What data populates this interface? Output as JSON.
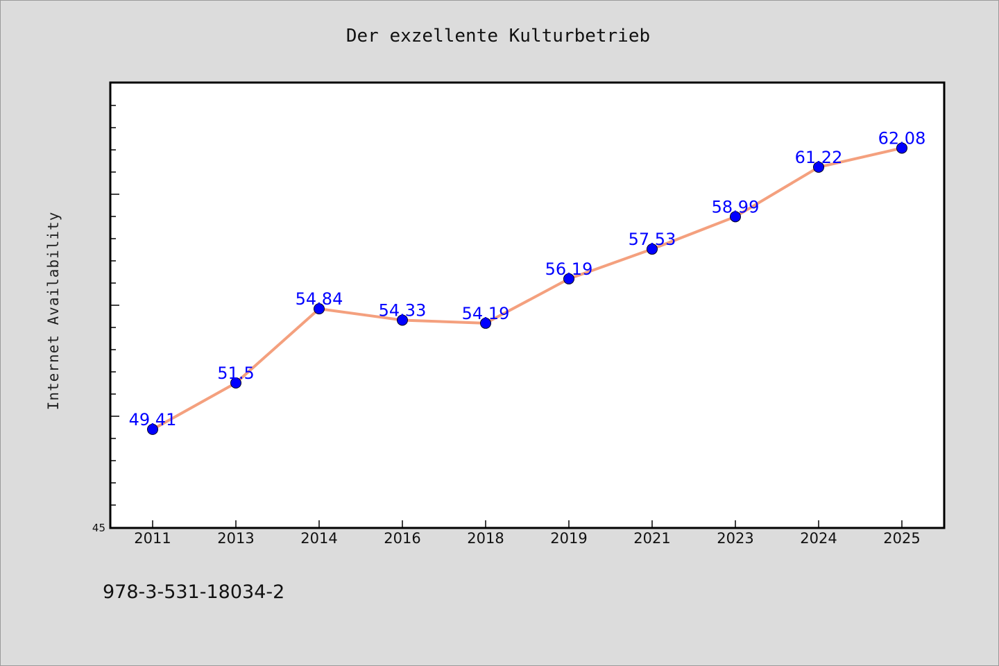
{
  "chart_data": {
    "type": "line",
    "title": "Der exzellente Kulturbetrieb",
    "ylabel": "Internet Availability",
    "xlabel": "",
    "categories": [
      "2011",
      "2013",
      "2014",
      "2016",
      "2018",
      "2019",
      "2021",
      "2023",
      "2024",
      "2025"
    ],
    "series": [
      {
        "values": [
          49.41,
          51.5,
          54.84,
          54.33,
          54.19,
          56.19,
          57.53,
          58.99,
          61.22,
          62.08
        ],
        "labels": [
          "49.41",
          "51.5",
          "54.84",
          "54.33",
          "54.19",
          "56.19",
          "57.53",
          "58.99",
          "61.22",
          "62.08"
        ]
      }
    ],
    "ylim": [
      45,
      65
    ],
    "yticks_labeled": [
      "45"
    ],
    "grid": false,
    "line_color": "#f4a07e",
    "marker_color": "#0000ff",
    "label_color": "#0000ff",
    "background_color": "#dcdcdc",
    "plot_background": "#ffffff"
  },
  "footer": {
    "isbn": "978-3-531-18034-2"
  }
}
